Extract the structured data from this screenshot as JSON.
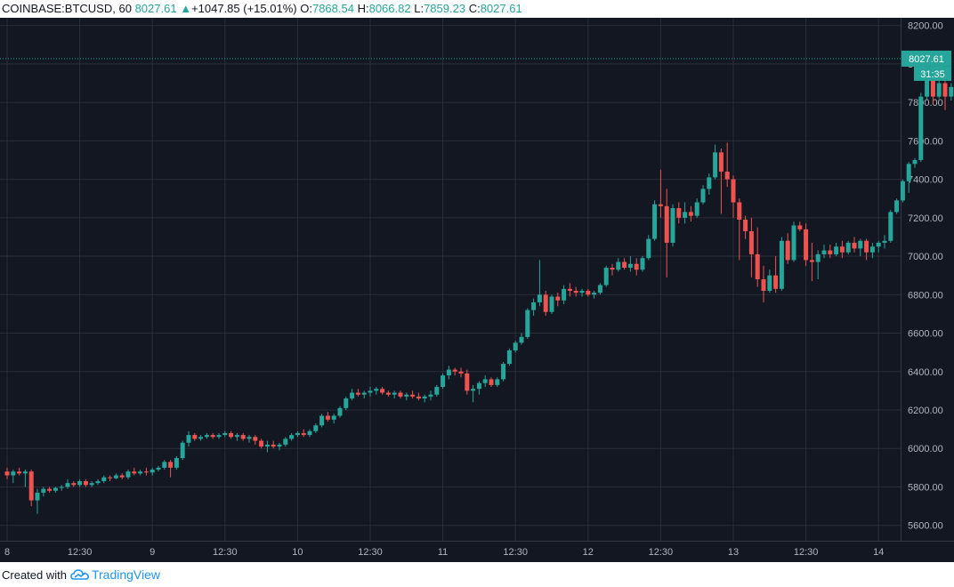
{
  "header": {
    "symbol": "COINBASE:BTCUSD, 60",
    "last": "8027.61",
    "change": "+1047.85 (+15.01%)",
    "o_label": "O:",
    "o_value": "7868.54",
    "h_label": "H:",
    "h_value": "8066.82",
    "l_label": "L:",
    "l_value": "7859.23",
    "c_label": "C:",
    "c_value": "8027.61"
  },
  "footer": {
    "created_with": "Created with",
    "brand": "TradingView"
  },
  "colors": {
    "background": "#131722",
    "grid": "#2a2e39",
    "up": "#26a69a",
    "down": "#ef5350",
    "axis_text": "#b2b5be"
  },
  "chart_data": {
    "type": "candlestick",
    "title": "COINBASE:BTCUSD, 60",
    "ylim": [
      5520,
      8240
    ],
    "y_ticks": [
      5600,
      5800,
      6000,
      6200,
      6400,
      6600,
      6800,
      7000,
      7200,
      7400,
      7600,
      7800,
      8000,
      8200
    ],
    "y_tick_labels": [
      "5600.00",
      "5800.00",
      "6000.00",
      "6200.00",
      "6400.00",
      "6600.00",
      "6800.00",
      "7000.00",
      "7200.00",
      "7400.00",
      "7600.00",
      "7800.00",
      "8000.00",
      "8200.00"
    ],
    "x_ticks": [
      {
        "index": 0,
        "label": "8"
      },
      {
        "index": 12,
        "label": "12:30"
      },
      {
        "index": 24,
        "label": "9"
      },
      {
        "index": 36,
        "label": "12:30"
      },
      {
        "index": 48,
        "label": "10"
      },
      {
        "index": 60,
        "label": "12:30"
      },
      {
        "index": 72,
        "label": "11"
      },
      {
        "index": 84,
        "label": "12:30"
      },
      {
        "index": 96,
        "label": "12"
      },
      {
        "index": 108,
        "label": "12:30"
      },
      {
        "index": 120,
        "label": "13"
      },
      {
        "index": 132,
        "label": "12:30"
      },
      {
        "index": 144,
        "label": "14"
      }
    ],
    "price_label": "8027.61",
    "countdown_label": "31:35",
    "last_price": 8027.61,
    "candles": [
      [
        5880,
        5900,
        5840,
        5860
      ],
      [
        5860,
        5890,
        5820,
        5880
      ],
      [
        5880,
        5900,
        5860,
        5870
      ],
      [
        5870,
        5890,
        5800,
        5880
      ],
      [
        5880,
        5890,
        5700,
        5730
      ],
      [
        5730,
        5790,
        5660,
        5770
      ],
      [
        5770,
        5800,
        5750,
        5790
      ],
      [
        5790,
        5800,
        5770,
        5780
      ],
      [
        5780,
        5800,
        5770,
        5795
      ],
      [
        5795,
        5810,
        5780,
        5800
      ],
      [
        5800,
        5840,
        5790,
        5820
      ],
      [
        5820,
        5830,
        5800,
        5810
      ],
      [
        5810,
        5840,
        5800,
        5830
      ],
      [
        5830,
        5840,
        5800,
        5810
      ],
      [
        5810,
        5830,
        5800,
        5820
      ],
      [
        5820,
        5840,
        5810,
        5830
      ],
      [
        5830,
        5860,
        5820,
        5850
      ],
      [
        5850,
        5860,
        5830,
        5845
      ],
      [
        5845,
        5870,
        5840,
        5860
      ],
      [
        5860,
        5870,
        5840,
        5850
      ],
      [
        5850,
        5890,
        5840,
        5880
      ],
      [
        5880,
        5900,
        5860,
        5870
      ],
      [
        5870,
        5890,
        5860,
        5880
      ],
      [
        5880,
        5900,
        5860,
        5875
      ],
      [
        5875,
        5900,
        5860,
        5890
      ],
      [
        5890,
        5910,
        5880,
        5900
      ],
      [
        5900,
        5940,
        5890,
        5930
      ],
      [
        5930,
        5940,
        5850,
        5900
      ],
      [
        5900,
        5960,
        5890,
        5950
      ],
      [
        5950,
        6040,
        5940,
        6030
      ],
      [
        6030,
        6090,
        6010,
        6070
      ],
      [
        6070,
        6080,
        6040,
        6050
      ],
      [
        6050,
        6070,
        6040,
        6060
      ],
      [
        6060,
        6080,
        6050,
        6070
      ],
      [
        6070,
        6080,
        6050,
        6060
      ],
      [
        6060,
        6080,
        6050,
        6070
      ],
      [
        6070,
        6090,
        6060,
        6080
      ],
      [
        6080,
        6090,
        6050,
        6060
      ],
      [
        6060,
        6080,
        6040,
        6070
      ],
      [
        6070,
        6080,
        6040,
        6050
      ],
      [
        6050,
        6070,
        6030,
        6060
      ],
      [
        6060,
        6070,
        6020,
        6040
      ],
      [
        6040,
        6050,
        6000,
        6010
      ],
      [
        6010,
        6040,
        5980,
        6020
      ],
      [
        6020,
        6040,
        6000,
        6010
      ],
      [
        6010,
        6030,
        5990,
        6020
      ],
      [
        6020,
        6060,
        6010,
        6050
      ],
      [
        6050,
        6080,
        6040,
        6070
      ],
      [
        6070,
        6090,
        6060,
        6080
      ],
      [
        6080,
        6100,
        6060,
        6070
      ],
      [
        6070,
        6100,
        6060,
        6090
      ],
      [
        6090,
        6130,
        6080,
        6120
      ],
      [
        6120,
        6180,
        6110,
        6170
      ],
      [
        6170,
        6190,
        6140,
        6150
      ],
      [
        6150,
        6180,
        6130,
        6170
      ],
      [
        6170,
        6220,
        6160,
        6210
      ],
      [
        6210,
        6270,
        6200,
        6260
      ],
      [
        6260,
        6310,
        6250,
        6290
      ],
      [
        6290,
        6310,
        6270,
        6280
      ],
      [
        6280,
        6300,
        6260,
        6290
      ],
      [
        6290,
        6320,
        6270,
        6300
      ],
      [
        6300,
        6320,
        6280,
        6310
      ],
      [
        6310,
        6320,
        6280,
        6290
      ],
      [
        6290,
        6300,
        6270,
        6280
      ],
      [
        6280,
        6300,
        6260,
        6290
      ],
      [
        6290,
        6300,
        6260,
        6270
      ],
      [
        6270,
        6290,
        6250,
        6280
      ],
      [
        6280,
        6300,
        6260,
        6270
      ],
      [
        6270,
        6290,
        6250,
        6260
      ],
      [
        6260,
        6280,
        6240,
        6270
      ],
      [
        6270,
        6300,
        6250,
        6280
      ],
      [
        6280,
        6330,
        6270,
        6320
      ],
      [
        6320,
        6390,
        6310,
        6380
      ],
      [
        6380,
        6430,
        6360,
        6410
      ],
      [
        6410,
        6420,
        6380,
        6400
      ],
      [
        6400,
        6420,
        6370,
        6390
      ],
      [
        6390,
        6410,
        6280,
        6300
      ],
      [
        6300,
        6330,
        6240,
        6310
      ],
      [
        6310,
        6350,
        6280,
        6340
      ],
      [
        6340,
        6380,
        6320,
        6360
      ],
      [
        6360,
        6370,
        6320,
        6330
      ],
      [
        6330,
        6370,
        6320,
        6360
      ],
      [
        6360,
        6450,
        6350,
        6440
      ],
      [
        6440,
        6520,
        6430,
        6510
      ],
      [
        6510,
        6560,
        6500,
        6550
      ],
      [
        6550,
        6600,
        6540,
        6580
      ],
      [
        6580,
        6730,
        6570,
        6720
      ],
      [
        6720,
        6780,
        6690,
        6760
      ],
      [
        6760,
        6980,
        6740,
        6800
      ],
      [
        6800,
        6820,
        6690,
        6710
      ],
      [
        6710,
        6800,
        6700,
        6790
      ],
      [
        6790,
        6810,
        6740,
        6770
      ],
      [
        6770,
        6850,
        6750,
        6830
      ],
      [
        6830,
        6860,
        6790,
        6820
      ],
      [
        6820,
        6840,
        6790,
        6810
      ],
      [
        6810,
        6830,
        6790,
        6820
      ],
      [
        6820,
        6830,
        6790,
        6800
      ],
      [
        6800,
        6820,
        6780,
        6810
      ],
      [
        6810,
        6860,
        6800,
        6850
      ],
      [
        6850,
        6950,
        6840,
        6940
      ],
      [
        6940,
        6960,
        6900,
        6930
      ],
      [
        6930,
        6990,
        6920,
        6970
      ],
      [
        6970,
        6990,
        6930,
        6940
      ],
      [
        6940,
        7000,
        6920,
        6960
      ],
      [
        6960,
        6990,
        6900,
        6930
      ],
      [
        6930,
        7000,
        6920,
        6990
      ],
      [
        6990,
        7110,
        6980,
        7090
      ],
      [
        7090,
        7290,
        7080,
        7270
      ],
      [
        7270,
        7450,
        7200,
        7260
      ],
      [
        7260,
        7350,
        6890,
        7070
      ],
      [
        7070,
        7270,
        7050,
        7250
      ],
      [
        7250,
        7280,
        7170,
        7200
      ],
      [
        7200,
        7280,
        7170,
        7230
      ],
      [
        7230,
        7260,
        7180,
        7210
      ],
      [
        7210,
        7300,
        7200,
        7280
      ],
      [
        7280,
        7370,
        7270,
        7350
      ],
      [
        7350,
        7430,
        7320,
        7410
      ],
      [
        7410,
        7580,
        7400,
        7540
      ],
      [
        7540,
        7560,
        7220,
        7440
      ],
      [
        7440,
        7590,
        7360,
        7400
      ],
      [
        7400,
        7420,
        7200,
        7280
      ],
      [
        7280,
        7300,
        6980,
        7190
      ],
      [
        7190,
        7210,
        7090,
        7130
      ],
      [
        7130,
        7200,
        6890,
        7010
      ],
      [
        7010,
        7150,
        6840,
        6880
      ],
      [
        6880,
        6950,
        6760,
        6820
      ],
      [
        6820,
        6930,
        6810,
        6900
      ],
      [
        6900,
        7000,
        6810,
        6830
      ],
      [
        6830,
        7100,
        6820,
        7080
      ],
      [
        7080,
        7120,
        6960,
        6980
      ],
      [
        6980,
        7180,
        6970,
        7160
      ],
      [
        7160,
        7180,
        7130,
        7140
      ],
      [
        7140,
        7170,
        6950,
        6980
      ],
      [
        6980,
        7070,
        6870,
        6970
      ],
      [
        6970,
        7030,
        6880,
        7010
      ],
      [
        7010,
        7060,
        6990,
        7030
      ],
      [
        7030,
        7060,
        6990,
        7010
      ],
      [
        7010,
        7070,
        7000,
        7050
      ],
      [
        7050,
        7080,
        6990,
        7020
      ],
      [
        7020,
        7080,
        7010,
        7070
      ],
      [
        7070,
        7100,
        7020,
        7040
      ],
      [
        7040,
        7090,
        7000,
        7080
      ],
      [
        7080,
        7090,
        6980,
        7020
      ],
      [
        7020,
        7070,
        6990,
        7050
      ],
      [
        7050,
        7080,
        7020,
        7070
      ],
      [
        7070,
        7110,
        7040,
        7080
      ],
      [
        7080,
        7240,
        7070,
        7230
      ],
      [
        7230,
        7300,
        7220,
        7290
      ],
      [
        7290,
        7400,
        7280,
        7390
      ],
      [
        7390,
        7490,
        7330,
        7480
      ],
      [
        7480,
        7510,
        7460,
        7500
      ],
      [
        7500,
        7850,
        7490,
        7830
      ],
      [
        7830,
        7940,
        7810,
        7920
      ],
      [
        7920,
        7970,
        7790,
        7830
      ],
      [
        7830,
        7960,
        7820,
        7900
      ],
      [
        7900,
        7930,
        7760,
        7830
      ],
      [
        7830,
        7900,
        7810,
        7880
      ],
      [
        7880,
        7960,
        7770,
        7850
      ],
      [
        7850,
        7910,
        7830,
        7869
      ],
      [
        7869,
        8067,
        7859,
        8028
      ]
    ]
  }
}
